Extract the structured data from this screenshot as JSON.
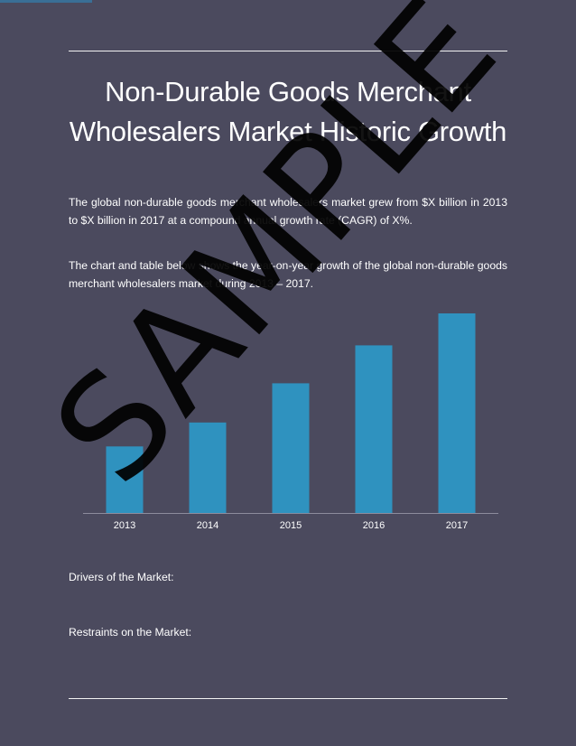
{
  "document": {
    "title": "Non-Durable Goods Merchant Wholesalers Market Historic Growth",
    "paragraphs": [
      "The global non-durable goods merchant wholesalers market grew from $X billion in 2013 to $X billion in 2017 at a compound annual growth rate (CAGR) of X%.",
      "The chart and table below shows the year-on-year growth of the global non-durable goods merchant wholesalers market during 2013 – 2017."
    ],
    "sections": {
      "drivers": "Drivers of the Market:",
      "restraints": "Restraints on the Market:"
    },
    "watermark": "SAMPLE"
  },
  "colors": {
    "background": "#4b4a5e",
    "bar": "#2f92bf",
    "text": "#ffffff",
    "axis": "#8d8c9c"
  },
  "chart_data": {
    "type": "bar",
    "categories": [
      "2013",
      "2014",
      "2015",
      "2016",
      "2017"
    ],
    "values": [
      1.0,
      1.36,
      1.95,
      2.52,
      3.0
    ],
    "title": "",
    "xlabel": "",
    "ylabel": "",
    "ylim": [
      0,
      3.0
    ],
    "grid": false,
    "legend": "none"
  }
}
